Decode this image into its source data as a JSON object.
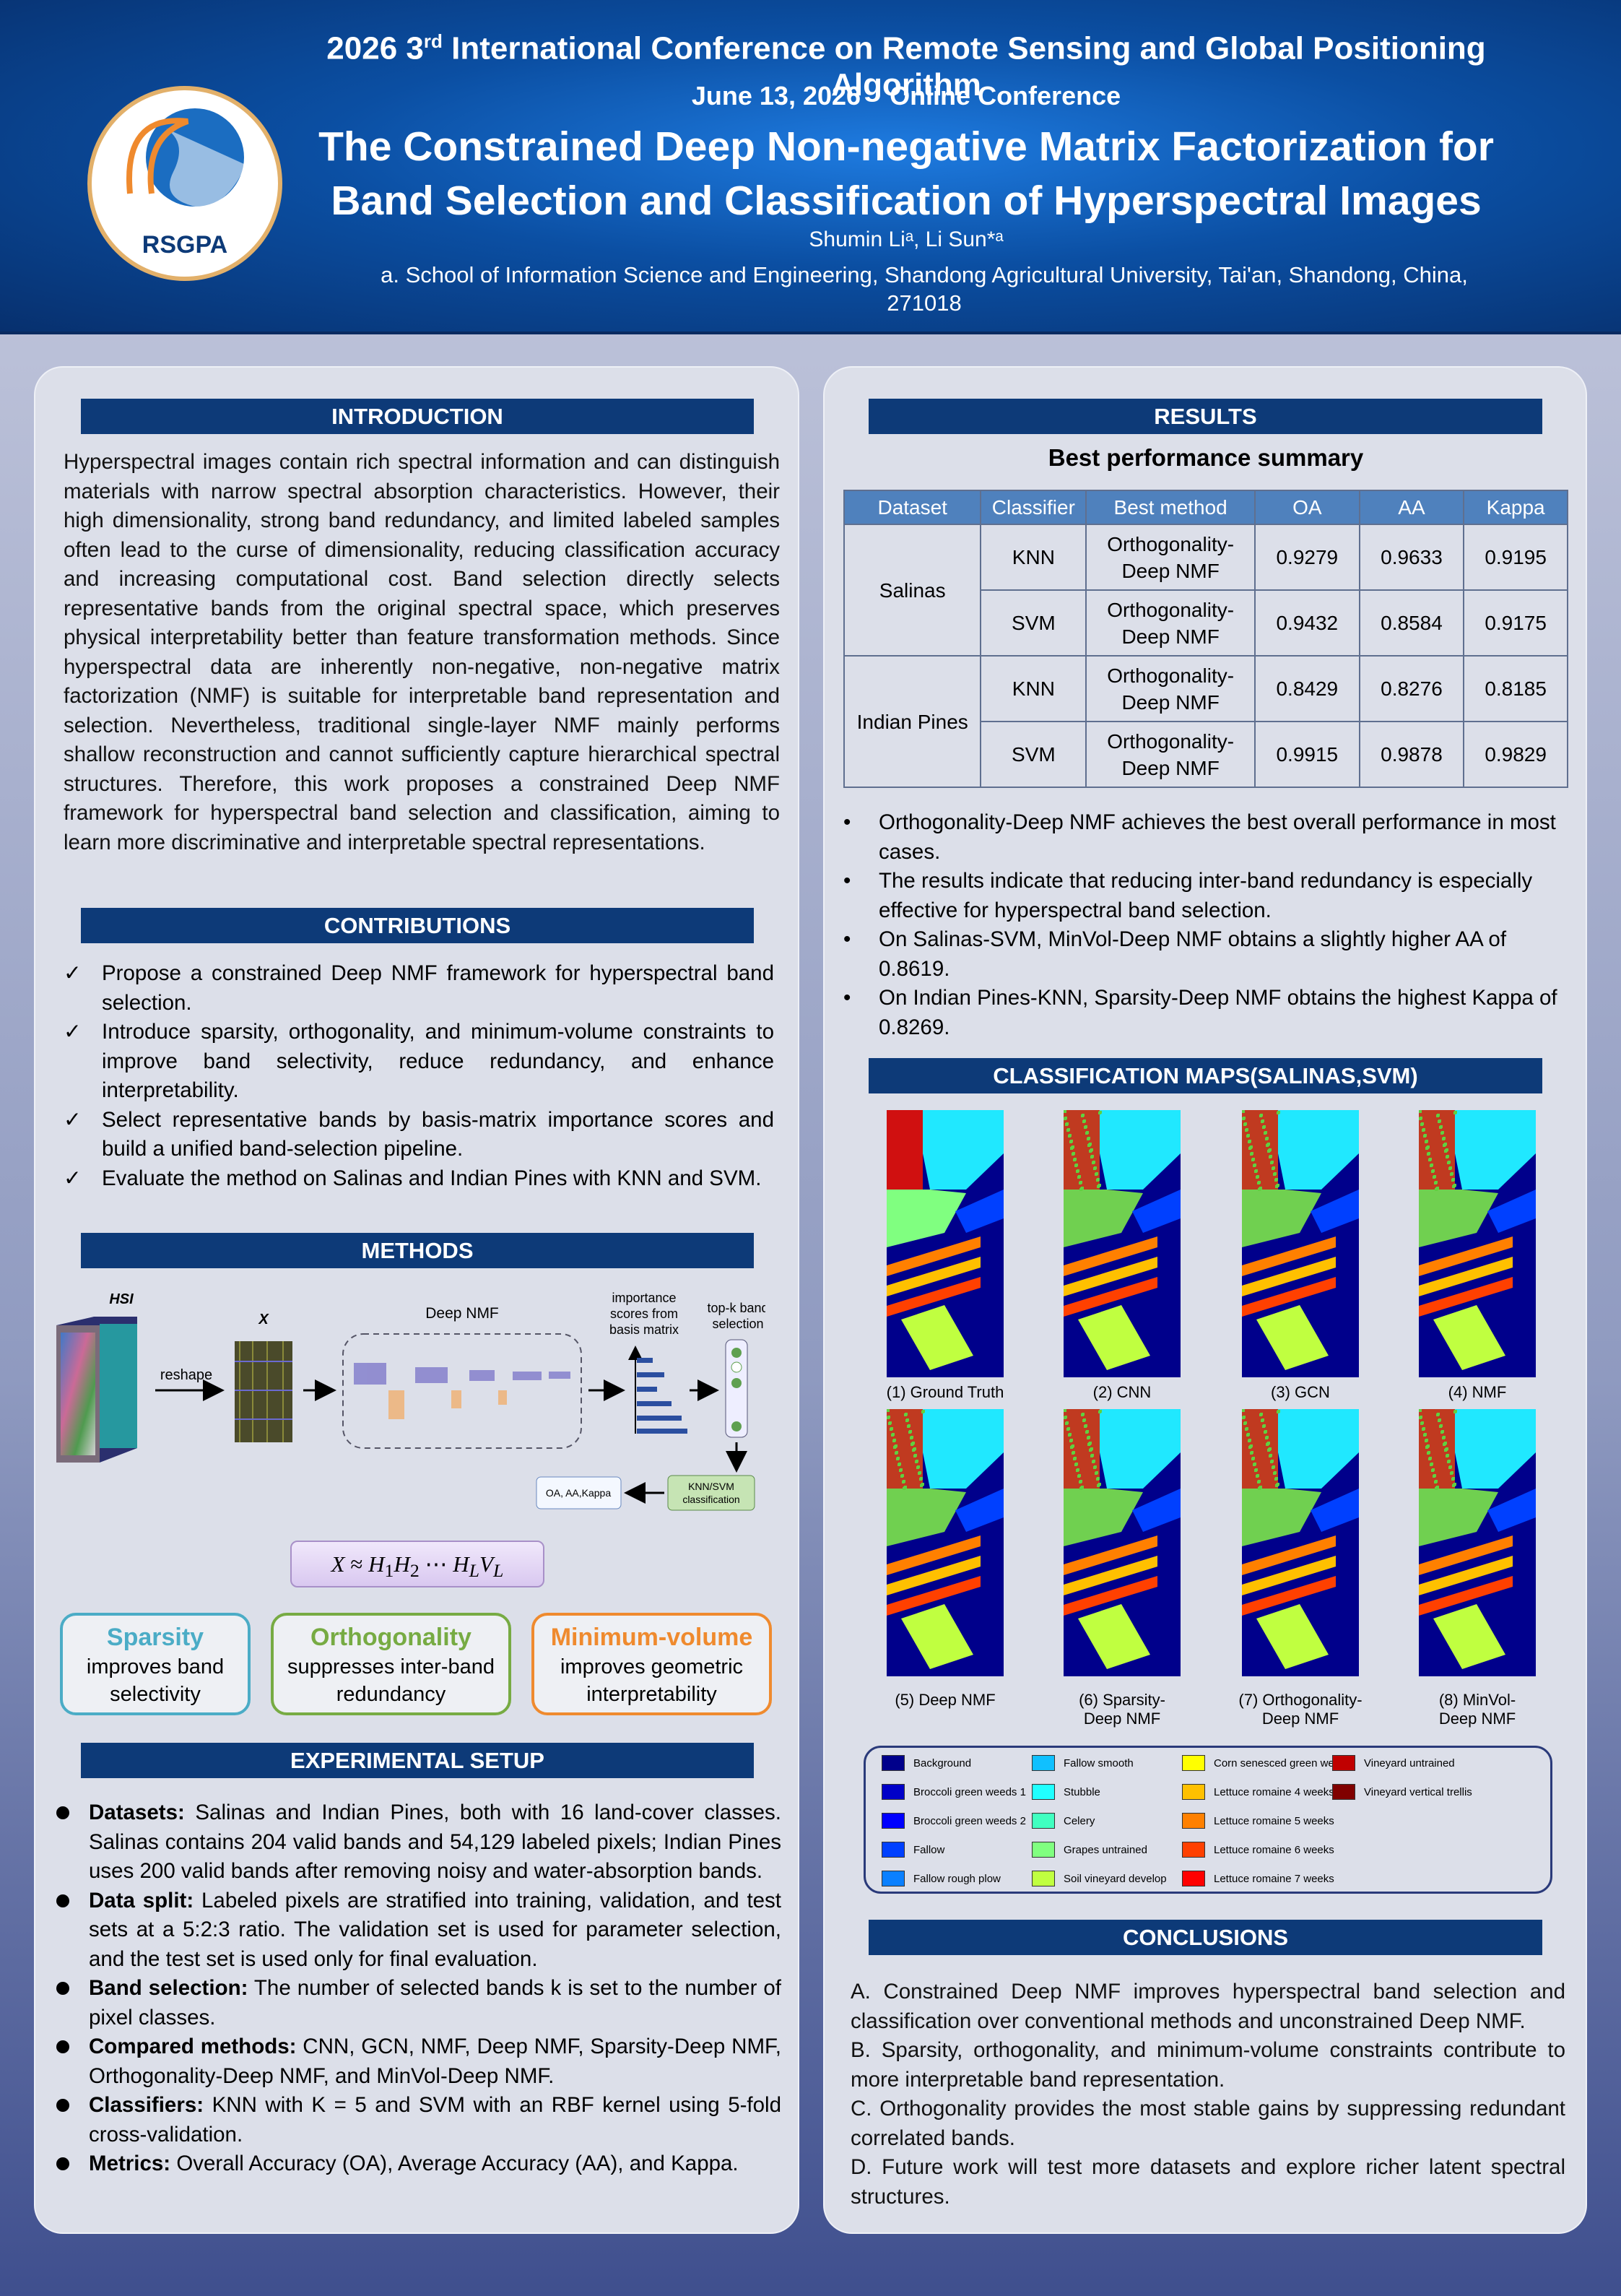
{
  "header": {
    "logo": "RSGPA",
    "conference": [
      "2026 3",
      "rd",
      "International Conference on Remote Sensing and Global Positioning Algorithm"
    ],
    "date": "June 13, 2026",
    "mode": "Online Conference",
    "title": [
      "The Constrained Deep Non-negative Matrix Factorization for",
      "Band Selection and Classification of Hyperspectral Images"
    ],
    "authors": "Shumin Liᵃ, Li Sun*ᵃ",
    "affiliation": "a. School of Information Science and Engineering, Shandong Agricultural University, Tai'an, Shandong, China, 271018"
  },
  "introduction": {
    "heading": "INTRODUCTION",
    "text": "Hyperspectral images contain rich spectral information and can distinguish materials with narrow spectral absorption characteristics. However, their high dimensionality, strong band redundancy, and limited labeled samples often lead to the curse of dimensionality, reducing classification accuracy and increasing computational cost. Band selection directly selects representative bands from the original spectral space, which preserves physical interpretability better than feature transformation methods. Since hyperspectral data are inherently non-negative, non-negative matrix factorization (NMF) is suitable for interpretable band representation and selection. Nevertheless, traditional single-layer NMF mainly performs shallow reconstruction and cannot sufficiently capture hierarchical spectral structures. Therefore, this work proposes a constrained Deep NMF framework for hyperspectral band selection and classification, aiming to learn more discriminative and interpretable spectral representations."
  },
  "contributions": {
    "heading": "CONTRIBUTIONS",
    "items": [
      "Propose a constrained Deep NMF framework for hyperspectral band selection.",
      "Introduce sparsity, orthogonality, and minimum-volume constraints to improve band selectivity, reduce redundancy, and enhance interpretability.",
      "Select representative bands by basis-matrix importance scores and build a unified band-selection pipeline.",
      "Evaluate the method on Salinas and Indian Pines with KNN and SVM."
    ]
  },
  "methods": {
    "heading": "METHODS",
    "diagram": {
      "hsi": "HSI",
      "x": "X",
      "reshape": "reshape",
      "deep_nmf": "Deep NMF",
      "importance": [
        "importance",
        "scores from",
        "basis matrix"
      ],
      "topk": [
        "top-k band",
        "selection"
      ],
      "classifier": [
        "KNN/SVM",
        "classification"
      ],
      "metrics": "OA, AA,Kappa"
    },
    "formula": [
      "X",
      "≈",
      "H",
      "1",
      "H",
      "2",
      "⋯",
      "H",
      "L",
      "V",
      "L"
    ],
    "constraints": [
      {
        "name": "Sparsity",
        "desc": [
          "improves band",
          "selectivity"
        ],
        "color": "#4bacc6"
      },
      {
        "name": "Orthogonality",
        "desc": [
          "suppresses inter-band",
          "redundancy"
        ],
        "color": "#77ab43"
      },
      {
        "name": "Minimum-volume",
        "desc": [
          "improves geometric",
          "interpretability"
        ],
        "color": "#ef8a2e"
      }
    ]
  },
  "setup": {
    "heading": "EXPERIMENTAL SETUP",
    "items": [
      {
        "label": "Datasets:",
        "text": "Salinas and Indian Pines, both with 16 land-cover classes. Salinas contains 204 valid bands and 54,129 labeled pixels; Indian Pines uses 200 valid bands after removing noisy and water-absorption bands."
      },
      {
        "label": "Data split:",
        "text": "Labeled pixels are stratified into training, validation, and test sets at a 5:2:3 ratio. The validation set is used for parameter selection, and the test set is used only for final evaluation."
      },
      {
        "label": "Band selection:",
        "text": "The number of selected bands k is set to the number of pixel classes."
      },
      {
        "label": "Compared methods:",
        "text": "CNN, GCN, NMF, Deep NMF, Sparsity-Deep NMF, Orthogonality-Deep NMF, and MinVol-Deep NMF."
      },
      {
        "label": "Classifiers:",
        "text": "KNN with K = 5 and SVM with an RBF kernel using 5-fold cross-validation."
      },
      {
        "label": "Metrics:",
        "text": "Overall Accuracy (OA), Average Accuracy (AA), and Kappa."
      }
    ]
  },
  "results": {
    "heading": "RESULTS",
    "subtitle": "Best performance summary",
    "table": {
      "columns": [
        "Dataset",
        "Classifier",
        "Best method",
        "OA",
        "AA",
        "Kappa"
      ],
      "groups": [
        {
          "dataset": "Salinas",
          "rows": [
            [
              "KNN",
              "Orthogonality-Deep NMF",
              0.9279,
              0.9633,
              0.9195
            ],
            [
              "SVM",
              "Orthogonality-Deep NMF",
              0.9432,
              0.8584,
              0.9175
            ]
          ]
        },
        {
          "dataset": "Indian Pines",
          "rows": [
            [
              "KNN",
              "Orthogonality-Deep NMF",
              0.8429,
              0.8276,
              0.8185
            ],
            [
              "SVM",
              "Orthogonality-Deep NMF",
              0.9915,
              0.9878,
              0.9829
            ]
          ]
        }
      ]
    },
    "bullets": [
      "Orthogonality-Deep NMF achieves the best overall performance in most cases.",
      "The results indicate that reducing inter-band redundancy is especially effective for hyperspectral band selection.",
      "On Salinas-SVM, MinVol-Deep NMF obtains a slightly higher AA of 0.8619.",
      "On Indian Pines-KNN, Sparsity-Deep NMF obtains the highest Kappa of 0.8269."
    ]
  },
  "maps": {
    "heading": "CLASSIFICATION MAPS(SALINAS,SVM)",
    "captions": [
      [
        "(1) Ground Truth"
      ],
      [
        "(2) CNN"
      ],
      [
        "(3) GCN"
      ],
      [
        "(4) NMF"
      ],
      [
        "(5) Deep NMF"
      ],
      [
        "(6) Sparsity-",
        "Deep NMF"
      ],
      [
        "(7) Orthogonality-",
        "Deep NMF"
      ],
      [
        "(8) MinVol-",
        "Deep NMF"
      ]
    ],
    "legend": [
      {
        "label": "Background",
        "color": "#00008b"
      },
      {
        "label": "Broccoli green weeds 1",
        "color": "#0000c8"
      },
      {
        "label": "Broccoli green weeds 2",
        "color": "#0000ff"
      },
      {
        "label": "Fallow",
        "color": "#0040ff"
      },
      {
        "label": "Fallow rough plow",
        "color": "#0a80ff"
      },
      {
        "label": "Fallow smooth",
        "color": "#10c0ff"
      },
      {
        "label": "Stubble",
        "color": "#20ffff"
      },
      {
        "label": "Celery",
        "color": "#40ffc0"
      },
      {
        "label": "Grapes untrained",
        "color": "#80ff80"
      },
      {
        "label": "Soil vineyard develop",
        "color": "#c0ff40"
      },
      {
        "label": "Corn senesced green weeds",
        "color": "#ffff00"
      },
      {
        "label": "Lettuce romaine 4 weeks",
        "color": "#ffc000"
      },
      {
        "label": "Lettuce romaine 5 weeks",
        "color": "#ff8000"
      },
      {
        "label": "Lettuce romaine 6 weeks",
        "color": "#ff4000"
      },
      {
        "label": "Lettuce romaine 7 weeks",
        "color": "#ff0000"
      },
      {
        "label": "Vineyard untrained",
        "color": "#c00000"
      },
      {
        "label": "Vineyard vertical trellis",
        "color": "#800000"
      }
    ]
  },
  "conclusions": {
    "heading": "CONCLUSIONS",
    "items": [
      "A. Constrained Deep NMF improves hyperspectral band selection and classification over conventional methods and unconstrained Deep NMF.",
      "B. Sparsity, orthogonality, and minimum-volume constraints contribute to more interpretable band representation.",
      "C. Orthogonality provides the most stable gains by suppressing redundant correlated bands.",
      "D. Future work will test more datasets and explore richer latent spectral structures."
    ]
  }
}
